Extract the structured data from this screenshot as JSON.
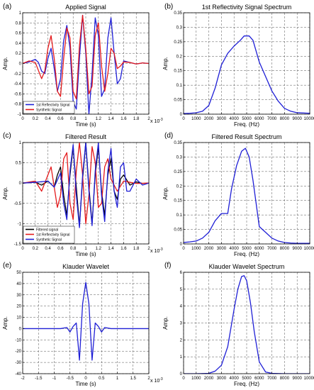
{
  "chart_data": [
    {
      "id": "a",
      "panel_label": "(a)",
      "type": "line",
      "title": "Applied Signal",
      "xlabel": "Time (s)",
      "ylabel": "Amp.",
      "xlim": [
        0,
        2
      ],
      "ylim": [
        -1,
        1
      ],
      "xticks": [
        0,
        0.2,
        0.4,
        0.6,
        0.8,
        1,
        1.2,
        1.4,
        1.6,
        1.8,
        2
      ],
      "xticklabels": [
        "0",
        "0.2",
        "0.4",
        "0.6",
        "0.8",
        "1",
        "1.2",
        "1.4",
        "1.6",
        "1.8",
        "2"
      ],
      "yticks": [
        -1,
        -0.8,
        -0.6,
        -0.4,
        -0.2,
        0,
        0.2,
        0.4,
        0.6,
        0.8,
        1
      ],
      "yticklabels": [
        "-1",
        "-0.8",
        "-0.6",
        "-0.4",
        "-0.2",
        "0",
        "0.2",
        "0.4",
        "0.6",
        "0.8",
        "1"
      ],
      "x_multiplier": "x 10",
      "x_multiplier_exp": "-3",
      "grid": true,
      "legend_position": "bottom-left",
      "series": [
        {
          "name": "1st Reflectivity Signal",
          "color": "#1f1fd6",
          "x": [
            0,
            0.1,
            0.2,
            0.25,
            0.3,
            0.35,
            0.4,
            0.45,
            0.5,
            0.55,
            0.6,
            0.65,
            0.7,
            0.75,
            0.8,
            0.85,
            0.9,
            0.95,
            1.0,
            1.05,
            1.1,
            1.15,
            1.2,
            1.25,
            1.3,
            1.35,
            1.4,
            1.45,
            1.5,
            1.55,
            1.6,
            1.7,
            1.8,
            1.9,
            2.0
          ],
          "y": [
            0,
            0.03,
            0.08,
            0.02,
            -0.15,
            -0.2,
            0.1,
            0.3,
            -0.1,
            -0.55,
            -0.3,
            0.45,
            0.75,
            0.3,
            -0.75,
            -0.9,
            0.1,
            0.95,
            0.2,
            -1.0,
            -0.2,
            0.9,
            0.55,
            -0.65,
            -0.5,
            0.5,
            0.9,
            0.2,
            -0.4,
            -0.3,
            0.05,
            0.02,
            -0.01,
            0.01,
            0
          ]
        },
        {
          "name": "Synthetic Signal",
          "color": "#e41a1c",
          "x": [
            0,
            0.1,
            0.2,
            0.3,
            0.35,
            0.4,
            0.45,
            0.5,
            0.55,
            0.6,
            0.65,
            0.7,
            0.75,
            0.8,
            0.85,
            0.9,
            0.95,
            1.0,
            1.05,
            1.1,
            1.15,
            1.2,
            1.25,
            1.3,
            1.35,
            1.4,
            1.45,
            1.5,
            1.55,
            1.6,
            1.7,
            1.8,
            1.9,
            2.0
          ],
          "y": [
            0,
            0.05,
            0.02,
            -0.3,
            -0.15,
            0.3,
            0.55,
            0.1,
            -0.55,
            -0.65,
            0.1,
            0.7,
            0.5,
            -0.55,
            -0.7,
            0.35,
            0.95,
            0.3,
            -0.6,
            -0.45,
            0.55,
            0.8,
            -0.05,
            -0.55,
            -0.2,
            0.3,
            0.2,
            -0.1,
            -0.05,
            0.03,
            0.02,
            -0.01,
            0.01,
            0
          ]
        }
      ]
    },
    {
      "id": "b",
      "panel_label": "(b)",
      "type": "line",
      "title": "1st Reflectivity Signal Spectrum",
      "xlabel": "Freq. (Hz)",
      "ylabel": "Amp.",
      "xlim": [
        0,
        10000
      ],
      "ylim": [
        0,
        0.35
      ],
      "xticks": [
        0,
        1000,
        2000,
        3000,
        4000,
        5000,
        6000,
        7000,
        8000,
        9000,
        10000
      ],
      "xticklabels": [
        "0",
        "1000",
        "2000",
        "3000",
        "4000",
        "5000",
        "6000",
        "7000",
        "8000",
        "9000",
        "10000"
      ],
      "yticks": [
        0,
        0.05,
        0.1,
        0.15,
        0.2,
        0.25,
        0.3,
        0.35
      ],
      "yticklabels": [
        "0",
        "0.05",
        "0.1",
        "0.15",
        "0.2",
        "0.25",
        "0.3",
        "0.35"
      ],
      "grid": true,
      "series": [
        {
          "color": "#1f1fd6",
          "x": [
            0,
            500,
            1000,
            1500,
            2000,
            2500,
            3000,
            3500,
            4000,
            4500,
            4800,
            5200,
            5500,
            6000,
            6500,
            7000,
            7500,
            8000,
            8500,
            9000,
            10000
          ],
          "y": [
            0.002,
            0.003,
            0.005,
            0.01,
            0.03,
            0.09,
            0.17,
            0.21,
            0.235,
            0.255,
            0.27,
            0.27,
            0.255,
            0.18,
            0.13,
            0.08,
            0.045,
            0.02,
            0.01,
            0.005,
            0.003
          ]
        }
      ]
    },
    {
      "id": "c",
      "panel_label": "(c)",
      "type": "line",
      "title": "Filtered Result",
      "xlabel": "Time (s)",
      "ylabel": "Amp.",
      "xlim": [
        0,
        2
      ],
      "ylim": [
        -1.5,
        1
      ],
      "xticks": [
        0,
        0.2,
        0.4,
        0.6,
        0.8,
        1,
        1.2,
        1.4,
        1.6,
        1.8,
        2
      ],
      "xticklabels": [
        "0",
        "0.2",
        "0.4",
        "0.6",
        "0.8",
        "1",
        "1.2",
        "1.4",
        "1.6",
        "1.8",
        "2"
      ],
      "yticks": [
        -1.5,
        -1,
        -0.5,
        0,
        0.5,
        1
      ],
      "yticklabels": [
        "-1.5",
        "-1",
        "-0.5",
        "0",
        "0.5",
        "1"
      ],
      "x_multiplier": "x 10",
      "x_multiplier_exp": "-3",
      "grid": true,
      "legend_position": "bottom-left",
      "series": [
        {
          "name": "Filtered signal",
          "color": "#000000",
          "x": [
            0,
            0.2,
            0.3,
            0.4,
            0.5,
            0.55,
            0.6,
            0.65,
            0.7,
            0.75,
            0.8,
            0.85,
            0.9,
            0.95,
            1.0,
            1.05,
            1.1,
            1.15,
            1.2,
            1.25,
            1.3,
            1.35,
            1.4,
            1.45,
            1.5,
            1.55,
            1.6,
            1.7,
            1.8,
            1.9,
            2.0
          ],
          "y": [
            0,
            0.02,
            -0.05,
            0.05,
            -0.1,
            0.2,
            0.4,
            -0.3,
            -0.8,
            0.2,
            0.9,
            -0.1,
            -1.05,
            0.1,
            1.0,
            -0.1,
            -1.0,
            0.2,
            0.9,
            -0.2,
            -0.8,
            0.2,
            0.6,
            -0.2,
            -0.4,
            0.1,
            0.2,
            -0.05,
            0.03,
            -0.01,
            0
          ]
        },
        {
          "name": "1st Reflectivity Signal",
          "color": "#e41a1c",
          "x": [
            0,
            0.2,
            0.3,
            0.4,
            0.45,
            0.5,
            0.55,
            0.6,
            0.65,
            0.7,
            0.75,
            0.8,
            0.85,
            0.9,
            0.95,
            1.0,
            1.05,
            1.1,
            1.15,
            1.2,
            1.25,
            1.3,
            1.35,
            1.4,
            1.5,
            1.6,
            1.7,
            1.8,
            2.0
          ],
          "y": [
            0,
            0.05,
            -0.2,
            0.2,
            0.4,
            -0.1,
            -0.6,
            -0.3,
            0.6,
            0.75,
            -0.5,
            -0.9,
            0.3,
            1.0,
            0.2,
            -1.0,
            -0.3,
            0.9,
            0.5,
            -0.6,
            -0.5,
            0.4,
            0.6,
            0.1,
            -0.2,
            0.05,
            0.02,
            -0.01,
            0
          ]
        },
        {
          "name": "Synthetic Signal",
          "color": "#1f1fd6",
          "x": [
            0,
            0.2,
            0.4,
            0.5,
            0.6,
            0.65,
            0.7,
            0.75,
            0.8,
            0.85,
            0.9,
            0.95,
            1.0,
            1.05,
            1.1,
            1.15,
            1.2,
            1.25,
            1.3,
            1.35,
            1.4,
            1.45,
            1.5,
            1.55,
            1.6,
            1.65,
            1.7,
            1.8,
            1.9,
            2.0
          ],
          "y": [
            0,
            0.02,
            0.05,
            -0.1,
            0.25,
            -0.5,
            -0.9,
            0.3,
            0.95,
            -0.3,
            -1.1,
            0.2,
            1.0,
            -0.2,
            -1.05,
            0.3,
            1.0,
            -0.3,
            -0.95,
            0.3,
            0.85,
            -0.2,
            -0.6,
            0.4,
            0.5,
            -0.2,
            -0.2,
            0.1,
            -0.05,
            0
          ]
        }
      ]
    },
    {
      "id": "d",
      "panel_label": "(d)",
      "type": "line",
      "title": "Filtered Result Spectrum",
      "xlabel": "Freq. (Hz)",
      "ylabel": "Amp.",
      "xlim": [
        0,
        10000
      ],
      "ylim": [
        0,
        0.35
      ],
      "xticks": [
        0,
        1000,
        2000,
        3000,
        4000,
        5000,
        6000,
        7000,
        8000,
        9000,
        10000
      ],
      "xticklabels": [
        "0",
        "1000",
        "2000",
        "3000",
        "4000",
        "5000",
        "6000",
        "7000",
        "8000",
        "9000",
        "10000"
      ],
      "yticks": [
        0,
        0.05,
        0.1,
        0.15,
        0.2,
        0.25,
        0.3,
        0.35
      ],
      "yticklabels": [
        "0",
        "0.05",
        "0.1",
        "0.15",
        "0.2",
        "0.25",
        "0.3",
        "0.35"
      ],
      "grid": true,
      "series": [
        {
          "color": "#1f1fd6",
          "x": [
            0,
            500,
            1000,
            1500,
            2000,
            2500,
            3000,
            3500,
            3800,
            4200,
            4600,
            4900,
            5200,
            5500,
            6000,
            6500,
            7000,
            7500,
            8000,
            8500,
            9000,
            10000
          ],
          "y": [
            0.005,
            0.007,
            0.01,
            0.02,
            0.04,
            0.08,
            0.105,
            0.105,
            0.19,
            0.27,
            0.32,
            0.33,
            0.3,
            0.22,
            0.06,
            0.04,
            0.02,
            0.01,
            0.005,
            0.003,
            0.002,
            0.002
          ]
        }
      ]
    },
    {
      "id": "e",
      "panel_label": "(e)",
      "type": "line",
      "title": "Klauder Wavelet",
      "xlabel": "Time (s)",
      "ylabel": "Amp.",
      "xlim": [
        -2,
        2
      ],
      "ylim": [
        -40,
        50
      ],
      "xticks": [
        -2,
        -1.5,
        -1,
        -0.5,
        0,
        0.5,
        1,
        1.5,
        2
      ],
      "xticklabels": [
        "-2",
        "-1.5",
        "-1",
        "-0.5",
        "0",
        "0.5",
        "1",
        "1.5",
        "2"
      ],
      "yticks": [
        -40,
        -30,
        -20,
        -10,
        0,
        10,
        20,
        30,
        40,
        50
      ],
      "yticklabels": [
        "-40",
        "-30",
        "-20",
        "-10",
        "0",
        "10",
        "20",
        "30",
        "40",
        "50"
      ],
      "x_multiplier": "x 10",
      "x_multiplier_exp": "-3",
      "grid": true,
      "series": [
        {
          "color": "#1f1fd6",
          "x": [
            -2,
            -0.8,
            -0.6,
            -0.5,
            -0.4,
            -0.3,
            -0.2,
            -0.1,
            0,
            0.1,
            0.2,
            0.3,
            0.4,
            0.5,
            0.6,
            0.8,
            2
          ],
          "y": [
            0,
            0,
            1,
            -3,
            2,
            5,
            -28,
            22,
            41,
            22,
            -28,
            5,
            2,
            -3,
            1,
            0,
            0
          ]
        }
      ]
    },
    {
      "id": "f",
      "panel_label": "(f)",
      "type": "line",
      "title": "Klauder Wavelet Spectrum",
      "xlabel": "Freq. (Hz)",
      "ylabel": "Amp.",
      "xlim": [
        0,
        10000
      ],
      "ylim": [
        0,
        6
      ],
      "xticks": [
        0,
        1000,
        2000,
        3000,
        4000,
        5000,
        6000,
        7000,
        8000,
        9000,
        10000
      ],
      "xticklabels": [
        "0",
        "1000",
        "2000",
        "3000",
        "4000",
        "5000",
        "6000",
        "7000",
        "8000",
        "9000",
        "10000"
      ],
      "yticks": [
        0,
        1,
        2,
        3,
        4,
        5,
        6
      ],
      "yticklabels": [
        "0",
        "1",
        "2",
        "3",
        "4",
        "5",
        "6"
      ],
      "grid": true,
      "series": [
        {
          "color": "#1f1fd6",
          "x": [
            0,
            1000,
            2000,
            2500,
            3000,
            3500,
            4000,
            4300,
            4600,
            4800,
            5000,
            5300,
            5600,
            6000,
            6500,
            7000,
            8000,
            10000
          ],
          "y": [
            0,
            0,
            0.02,
            0.15,
            0.5,
            1.6,
            3.8,
            5.0,
            5.75,
            5.8,
            5.5,
            4.2,
            2.5,
            0.7,
            0.1,
            0.02,
            0,
            0
          ]
        }
      ]
    }
  ]
}
